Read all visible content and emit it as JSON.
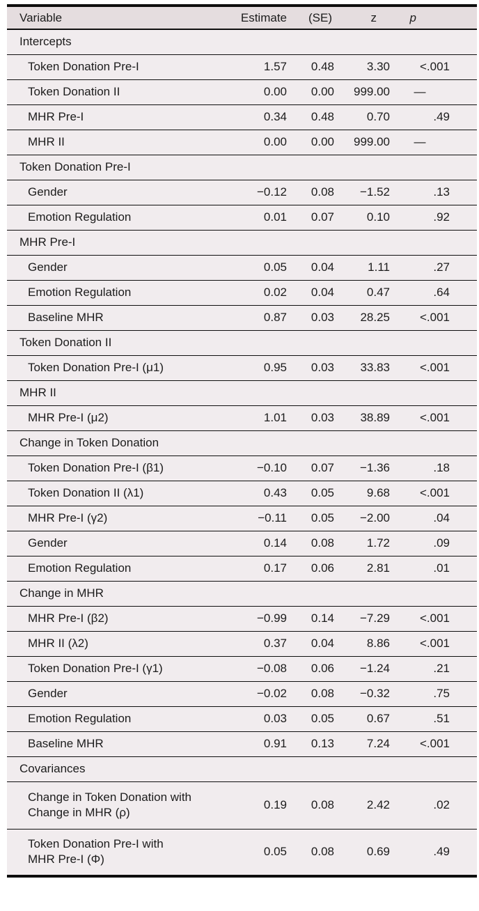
{
  "colors": {
    "page_bg": "#ffffff",
    "header_bg": "#e5dddf",
    "row_bg": "#f1ecee",
    "rule": "#0e0e0e",
    "text": "#1c1c1c"
  },
  "table": {
    "columns": [
      {
        "key": "variable",
        "label": "Variable"
      },
      {
        "key": "estimate",
        "label": "Estimate"
      },
      {
        "key": "se",
        "label": "(SE)"
      },
      {
        "key": "z",
        "label": "z"
      },
      {
        "key": "p",
        "label": "p"
      }
    ],
    "rows": [
      {
        "type": "section",
        "variable": "Intercepts"
      },
      {
        "type": "data",
        "variable": "Token Donation Pre-I",
        "estimate": "1.57",
        "se": "0.48",
        "z": "3.30",
        "p": "<.001"
      },
      {
        "type": "data",
        "variable": "Token Donation II",
        "estimate": "0.00",
        "se": "0.00",
        "z": "999.00",
        "p": "—"
      },
      {
        "type": "data",
        "variable": "MHR Pre-I",
        "estimate": "0.34",
        "se": "0.48",
        "z": "0.70",
        "p": ".49"
      },
      {
        "type": "data",
        "variable": "MHR II",
        "estimate": "0.00",
        "se": "0.00",
        "z": "999.00",
        "p": "—"
      },
      {
        "type": "section",
        "variable": "Token Donation Pre-I"
      },
      {
        "type": "data",
        "variable": "Gender",
        "estimate": "−0.12",
        "se": "0.08",
        "z": "−1.52",
        "p": ".13"
      },
      {
        "type": "data",
        "variable": "Emotion Regulation",
        "estimate": "0.01",
        "se": "0.07",
        "z": "0.10",
        "p": ".92"
      },
      {
        "type": "section",
        "variable": "MHR Pre-I"
      },
      {
        "type": "data",
        "variable": "Gender",
        "estimate": "0.05",
        "se": "0.04",
        "z": "1.11",
        "p": ".27"
      },
      {
        "type": "data",
        "variable": "Emotion Regulation",
        "estimate": "0.02",
        "se": "0.04",
        "z": "0.47",
        "p": ".64"
      },
      {
        "type": "data",
        "variable": "Baseline MHR",
        "estimate": "0.87",
        "se": "0.03",
        "z": "28.25",
        "p": "<.001"
      },
      {
        "type": "section",
        "variable": "Token Donation II"
      },
      {
        "type": "data",
        "variable": "Token Donation Pre-I (μ1)",
        "estimate": "0.95",
        "se": "0.03",
        "z": "33.83",
        "p": "<.001"
      },
      {
        "type": "section",
        "variable": "MHR II"
      },
      {
        "type": "data",
        "variable": "MHR Pre-I (μ2)",
        "estimate": "1.01",
        "se": "0.03",
        "z": "38.89",
        "p": "<.001"
      },
      {
        "type": "section",
        "variable": "Change in Token Donation"
      },
      {
        "type": "data",
        "variable": "Token Donation Pre-I (β1)",
        "estimate": "−0.10",
        "se": "0.07",
        "z": "−1.36",
        "p": ".18"
      },
      {
        "type": "data",
        "variable": "Token Donation II (λ1)",
        "estimate": "0.43",
        "se": "0.05",
        "z": "9.68",
        "p": "<.001"
      },
      {
        "type": "data",
        "variable": "MHR Pre-I (γ2)",
        "estimate": "−0.11",
        "se": "0.05",
        "z": "−2.00",
        "p": ".04"
      },
      {
        "type": "data",
        "variable": "Gender",
        "estimate": "0.14",
        "se": "0.08",
        "z": "1.72",
        "p": ".09"
      },
      {
        "type": "data",
        "variable": "Emotion Regulation",
        "estimate": "0.17",
        "se": "0.06",
        "z": "2.81",
        "p": ".01"
      },
      {
        "type": "section",
        "variable": "Change in MHR"
      },
      {
        "type": "data",
        "variable": "MHR Pre-I (β2)",
        "estimate": "−0.99",
        "se": "0.14",
        "z": "−7.29",
        "p": "<.001"
      },
      {
        "type": "data",
        "variable": "MHR II (λ2)",
        "estimate": "0.37",
        "se": "0.04",
        "z": "8.86",
        "p": "<.001"
      },
      {
        "type": "data",
        "variable": "Token Donation Pre-I (γ1)",
        "estimate": "−0.08",
        "se": "0.06",
        "z": "−1.24",
        "p": ".21"
      },
      {
        "type": "data",
        "variable": "Gender",
        "estimate": "−0.02",
        "se": "0.08",
        "z": "−0.32",
        "p": ".75"
      },
      {
        "type": "data",
        "variable": "Emotion Regulation",
        "estimate": "0.03",
        "se": "0.05",
        "z": "0.67",
        "p": ".51"
      },
      {
        "type": "data",
        "variable": "Baseline MHR",
        "estimate": "0.91",
        "se": "0.13",
        "z": "7.24",
        "p": "<.001"
      },
      {
        "type": "section",
        "variable": "Covariances"
      },
      {
        "type": "data",
        "multiline": true,
        "variable": "Change in Token Donation with\nChange in MHR (ρ)",
        "estimate": "0.19",
        "se": "0.08",
        "z": "2.42",
        "p": ".02"
      },
      {
        "type": "data",
        "multiline": true,
        "variable": "Token Donation Pre-I with\nMHR Pre-I (Φ)",
        "estimate": "0.05",
        "se": "0.08",
        "z": "0.69",
        "p": ".49"
      }
    ]
  }
}
